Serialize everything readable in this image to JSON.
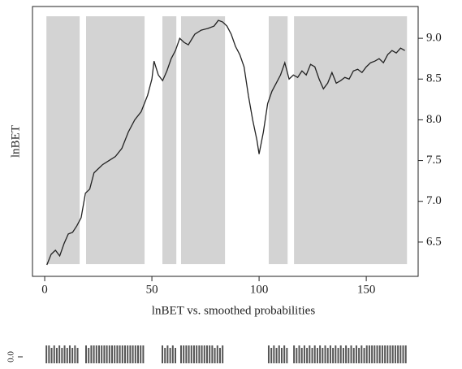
{
  "chart_data": [
    {
      "type": "line",
      "ylabel": "lnBET",
      "xlabel": "lnBET vs. smoothed probabilities",
      "xlim": [
        -5.7,
        174.2
      ],
      "ylim": [
        6.08,
        9.39
      ],
      "xticks": [
        0,
        50,
        100,
        150
      ],
      "yticks": [
        6.5,
        {
          "value": 7,
          "label": "7.0"
        },
        7.5,
        {
          "value": 8,
          "label": "8.0"
        },
        8.5,
        {
          "value": 9,
          "label": "9.0"
        }
      ],
      "shaded_regions": [
        [
          0.8,
          16.3
        ],
        [
          19.3,
          46.6
        ],
        [
          54.9,
          61.4
        ],
        [
          63.6,
          84.1
        ],
        [
          104.5,
          113.3
        ],
        [
          116.3,
          169
        ]
      ],
      "shade_color": "#d3d3d3",
      "color": "#222222",
      "x": [
        1,
        3,
        5,
        7,
        9,
        11,
        13,
        15,
        17,
        19,
        21,
        23,
        25,
        27,
        30,
        33,
        36,
        39,
        42,
        45,
        48,
        50,
        51,
        53,
        55,
        57,
        59,
        61,
        63,
        65,
        67,
        70,
        73,
        76,
        79,
        81,
        83,
        85,
        87,
        89,
        91,
        93,
        95,
        97,
        99,
        100,
        102,
        104,
        106,
        108,
        110,
        112,
        114,
        116,
        118,
        120,
        122,
        124,
        126,
        128,
        130,
        132,
        134,
        136,
        138,
        140,
        142,
        144,
        146,
        148,
        150,
        152,
        154,
        156,
        158,
        160,
        162,
        164,
        166,
        168
      ],
      "values": [
        6.22,
        6.35,
        6.4,
        6.33,
        6.48,
        6.6,
        6.62,
        6.7,
        6.8,
        7.1,
        7.15,
        7.35,
        7.4,
        7.45,
        7.5,
        7.55,
        7.65,
        7.85,
        8.0,
        8.1,
        8.3,
        8.5,
        8.72,
        8.55,
        8.48,
        8.6,
        8.75,
        8.85,
        9.0,
        8.95,
        8.92,
        9.05,
        9.1,
        9.12,
        9.15,
        9.22,
        9.2,
        9.15,
        9.05,
        8.9,
        8.8,
        8.65,
        8.3,
        8.0,
        7.75,
        7.58,
        7.85,
        8.2,
        8.35,
        8.45,
        8.55,
        8.7,
        8.5,
        8.55,
        8.52,
        8.6,
        8.55,
        8.68,
        8.65,
        8.5,
        8.38,
        8.45,
        8.58,
        8.45,
        8.48,
        8.52,
        8.5,
        8.6,
        8.62,
        8.58,
        8.65,
        8.7,
        8.72,
        8.75,
        8.7,
        8.8,
        8.85,
        8.82,
        8.88,
        8.85
      ]
    },
    {
      "type": "strip",
      "xlim": [
        -5.7,
        174.2
      ],
      "yticks": [
        {
          "value": 0,
          "label": "0.0"
        }
      ],
      "regions": [
        [
          0.8,
          16.3
        ],
        [
          19.3,
          46.6
        ],
        [
          54.9,
          61.4
        ],
        [
          63.6,
          84.1
        ],
        [
          104.5,
          113.3
        ],
        [
          116.3,
          169
        ]
      ],
      "color": "#555555"
    }
  ]
}
